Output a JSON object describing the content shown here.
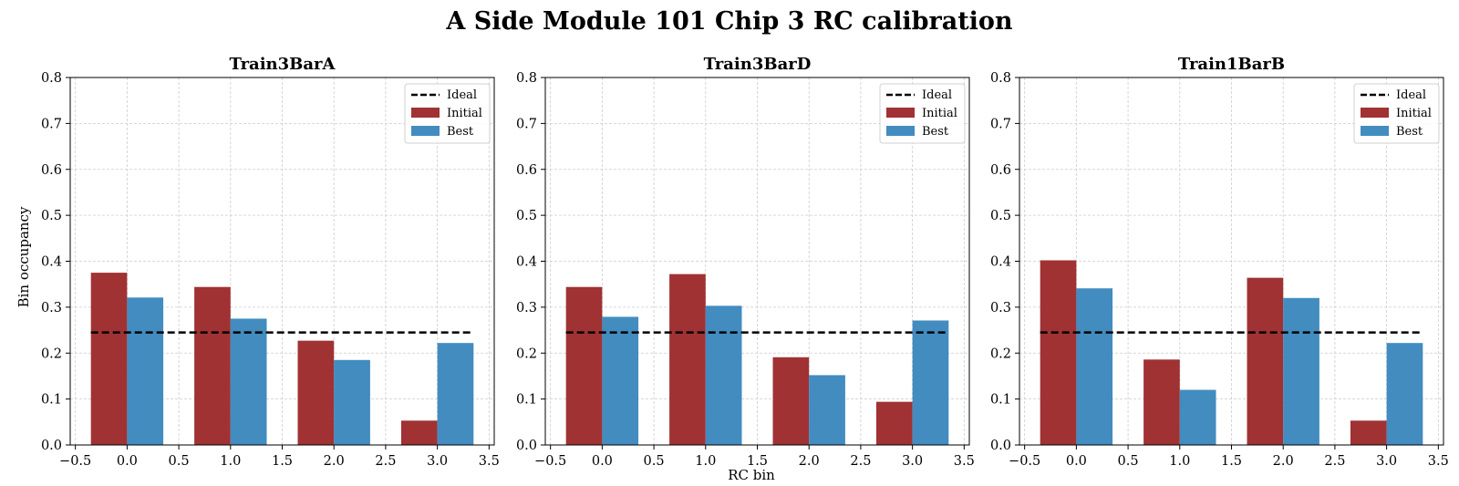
{
  "figure": {
    "title": "A Side Module 101 Chip 3 RC calibration",
    "xlabel": "RC bin",
    "ylabel": "Bin occupancy"
  },
  "colors": {
    "initial": "#a03234",
    "best": "#428cc0",
    "ideal": "#000000",
    "grid": "#cccccc"
  },
  "chart_data": [
    {
      "type": "bar",
      "title": "Train3BarA",
      "x": [
        0,
        1,
        2,
        3
      ],
      "xlim": [
        -0.55,
        3.55
      ],
      "ylim": [
        0,
        0.8
      ],
      "xticks": [
        -0.5,
        0.0,
        0.5,
        1.0,
        1.5,
        2.0,
        2.5,
        3.0,
        3.5
      ],
      "yticks": [
        0.0,
        0.1,
        0.2,
        0.3,
        0.4,
        0.5,
        0.6,
        0.7,
        0.8
      ],
      "grid": true,
      "legend_position": "top-right",
      "ideal": {
        "name": "Ideal",
        "value": 0.245,
        "x_range": [
          -0.35,
          3.35
        ]
      },
      "series": [
        {
          "name": "Initial",
          "values": [
            0.375,
            0.344,
            0.227,
            0.053
          ]
        },
        {
          "name": "Best",
          "values": [
            0.321,
            0.275,
            0.185,
            0.222
          ]
        }
      ]
    },
    {
      "type": "bar",
      "title": "Train3BarD",
      "x": [
        0,
        1,
        2,
        3
      ],
      "xlim": [
        -0.55,
        3.55
      ],
      "ylim": [
        0,
        0.8
      ],
      "xticks": [
        -0.5,
        0.0,
        0.5,
        1.0,
        1.5,
        2.0,
        2.5,
        3.0,
        3.5
      ],
      "yticks": [
        0.0,
        0.1,
        0.2,
        0.3,
        0.4,
        0.5,
        0.6,
        0.7,
        0.8
      ],
      "grid": true,
      "legend_position": "top-right",
      "ideal": {
        "name": "Ideal",
        "value": 0.245,
        "x_range": [
          -0.35,
          3.35
        ]
      },
      "series": [
        {
          "name": "Initial",
          "values": [
            0.344,
            0.372,
            0.191,
            0.094
          ]
        },
        {
          "name": "Best",
          "values": [
            0.279,
            0.303,
            0.152,
            0.271
          ]
        }
      ]
    },
    {
      "type": "bar",
      "title": "Train1BarB",
      "x": [
        0,
        1,
        2,
        3
      ],
      "xlim": [
        -0.55,
        3.55
      ],
      "ylim": [
        0,
        0.8
      ],
      "xticks": [
        -0.5,
        0.0,
        0.5,
        1.0,
        1.5,
        2.0,
        2.5,
        3.0,
        3.5
      ],
      "yticks": [
        0.0,
        0.1,
        0.2,
        0.3,
        0.4,
        0.5,
        0.6,
        0.7,
        0.8
      ],
      "grid": true,
      "legend_position": "top-right",
      "ideal": {
        "name": "Ideal",
        "value": 0.245,
        "x_range": [
          -0.35,
          3.35
        ]
      },
      "series": [
        {
          "name": "Initial",
          "values": [
            0.402,
            0.186,
            0.364,
            0.053
          ]
        },
        {
          "name": "Best",
          "values": [
            0.341,
            0.12,
            0.32,
            0.222
          ]
        }
      ]
    }
  ]
}
